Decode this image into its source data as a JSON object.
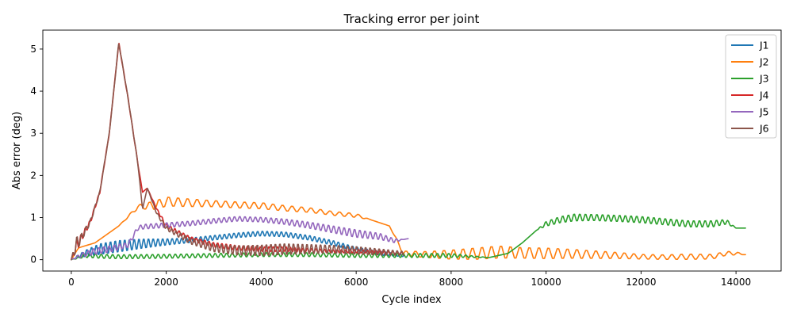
{
  "chart_data": {
    "type": "line",
    "title": "Tracking error per joint",
    "xlabel": "Cycle index",
    "ylabel": "Abs error (deg)",
    "xlim": [
      -600,
      14950
    ],
    "ylim": [
      -0.27,
      5.45
    ],
    "xticks": [
      0,
      2000,
      4000,
      6000,
      8000,
      10000,
      12000,
      14000
    ],
    "yticks": [
      0,
      1,
      2,
      3,
      4,
      5
    ],
    "xtick_labels": [
      "0",
      "2000",
      "4000",
      "6000",
      "8000",
      "10000",
      "12000",
      "14000"
    ],
    "ytick_labels": [
      "0",
      "1",
      "2",
      "3",
      "4",
      "5"
    ],
    "grid": false,
    "legend_position": "top-right",
    "series": [
      {
        "name": "J1",
        "color": "#1f77b4",
        "x": [
          0,
          100,
          300,
          600,
          1000,
          1500,
          2000,
          2500,
          3000,
          3500,
          4000,
          4500,
          5000,
          5500,
          6000,
          6500,
          7000
        ],
        "y": [
          0.0,
          0.05,
          0.15,
          0.25,
          0.32,
          0.38,
          0.42,
          0.46,
          0.52,
          0.58,
          0.62,
          0.6,
          0.52,
          0.4,
          0.25,
          0.15,
          0.1
        ],
        "osc_amp": [
          0.0,
          0.03,
          0.08,
          0.14,
          0.15,
          0.12,
          0.08,
          0.06,
          0.06,
          0.06,
          0.06,
          0.06,
          0.06,
          0.06,
          0.05,
          0.05,
          0.03
        ],
        "osc_period": 100
      },
      {
        "name": "J2",
        "color": "#ff7f0e",
        "x": [
          0,
          150,
          500,
          1000,
          1400,
          1800,
          2000,
          2500,
          3000,
          3500,
          4000,
          4500,
          5000,
          5500,
          6000,
          6300,
          6700,
          7000,
          7500,
          8000,
          8500,
          9000,
          9500,
          10000,
          10500,
          11000,
          11500,
          12000,
          12500,
          13000,
          13500,
          13800,
          14000,
          14200
        ],
        "y": [
          0.0,
          0.28,
          0.4,
          0.8,
          1.25,
          1.3,
          1.38,
          1.35,
          1.33,
          1.3,
          1.28,
          1.22,
          1.18,
          1.1,
          1.05,
          0.95,
          0.8,
          0.15,
          0.12,
          0.12,
          0.14,
          0.18,
          0.16,
          0.15,
          0.14,
          0.12,
          0.1,
          0.07,
          0.06,
          0.07,
          0.07,
          0.15,
          0.15,
          0.12
        ],
        "osc_amp": [
          0.0,
          0.0,
          0.0,
          0.0,
          0.05,
          0.12,
          0.12,
          0.1,
          0.08,
          0.08,
          0.08,
          0.07,
          0.06,
          0.05,
          0.05,
          0.0,
          0.0,
          0.06,
          0.08,
          0.12,
          0.15,
          0.16,
          0.14,
          0.14,
          0.12,
          0.1,
          0.08,
          0.06,
          0.06,
          0.07,
          0.06,
          0.05,
          0.04,
          0.0
        ],
        "osc_period": 200
      },
      {
        "name": "J3",
        "color": "#2ca02c",
        "x": [
          0,
          300,
          600,
          1000,
          2000,
          3000,
          4000,
          5000,
          6000,
          7000,
          8000,
          8800,
          9200,
          9500,
          9800,
          10000,
          10300,
          10600,
          11000,
          11500,
          12000,
          12500,
          13000,
          13500,
          13800,
          14000,
          14200
        ],
        "y": [
          0.0,
          0.1,
          0.08,
          0.07,
          0.08,
          0.1,
          0.12,
          0.12,
          0.1,
          0.1,
          0.1,
          0.05,
          0.15,
          0.4,
          0.7,
          0.85,
          0.95,
          1.0,
          1.0,
          0.98,
          0.95,
          0.9,
          0.85,
          0.85,
          0.9,
          0.75,
          0.75
        ],
        "osc_amp": [
          0.0,
          0.05,
          0.05,
          0.05,
          0.05,
          0.05,
          0.05,
          0.05,
          0.05,
          0.05,
          0.05,
          0.0,
          0.0,
          0.0,
          0.0,
          0.06,
          0.08,
          0.09,
          0.08,
          0.08,
          0.08,
          0.08,
          0.08,
          0.08,
          0.06,
          0.0,
          0.0
        ],
        "osc_period": 120
      },
      {
        "name": "J4",
        "color": "#d62728",
        "x": [
          0,
          100,
          200,
          400,
          600,
          800,
          1000,
          1200,
          1400,
          1500,
          1600,
          1800,
          2000,
          2500,
          3000,
          3500,
          4000,
          4500,
          5000,
          5500,
          6000,
          6500,
          7000
        ],
        "y": [
          0.0,
          0.3,
          0.5,
          0.9,
          1.6,
          3.0,
          5.15,
          3.8,
          2.3,
          1.6,
          1.7,
          1.2,
          0.8,
          0.5,
          0.35,
          0.28,
          0.25,
          0.25,
          0.22,
          0.2,
          0.2,
          0.18,
          0.15
        ],
        "osc_amp": [
          0.0,
          0.15,
          0.1,
          0.05,
          0.03,
          0.02,
          0.02,
          0.02,
          0.02,
          0.0,
          0.0,
          0.02,
          0.05,
          0.05,
          0.06,
          0.06,
          0.06,
          0.06,
          0.05,
          0.04,
          0.04,
          0.04,
          0.03
        ],
        "osc_period": 90
      },
      {
        "name": "J5",
        "color": "#9467bd",
        "x": [
          0,
          200,
          500,
          800,
          1200,
          1400,
          1500,
          2000,
          2500,
          3000,
          3500,
          4000,
          4500,
          5000,
          5500,
          6000,
          6500,
          6800,
          7000,
          7100
        ],
        "y": [
          0.0,
          0.1,
          0.2,
          0.25,
          0.35,
          0.75,
          0.78,
          0.82,
          0.86,
          0.92,
          0.97,
          0.95,
          0.9,
          0.82,
          0.72,
          0.62,
          0.55,
          0.45,
          0.48,
          0.5
        ],
        "osc_amp": [
          0.0,
          0.05,
          0.08,
          0.08,
          0.06,
          0.05,
          0.06,
          0.06,
          0.06,
          0.06,
          0.06,
          0.06,
          0.07,
          0.08,
          0.09,
          0.1,
          0.08,
          0.05,
          0.0,
          0.0
        ],
        "osc_period": 110
      },
      {
        "name": "J6",
        "color": "#8c564b",
        "x": [
          0,
          100,
          200,
          400,
          600,
          800,
          1000,
          1200,
          1400,
          1500,
          1600,
          1800,
          2000,
          2500,
          3000,
          3500,
          4000,
          4500,
          5000,
          5500,
          6000,
          6500,
          7000
        ],
        "y": [
          0.0,
          0.35,
          0.5,
          0.9,
          1.6,
          3.0,
          5.15,
          3.8,
          2.3,
          1.2,
          1.7,
          1.1,
          0.75,
          0.45,
          0.28,
          0.22,
          0.22,
          0.25,
          0.25,
          0.25,
          0.22,
          0.18,
          0.15
        ],
        "osc_amp": [
          0.0,
          0.2,
          0.1,
          0.05,
          0.03,
          0.02,
          0.03,
          0.02,
          0.02,
          0.0,
          0.0,
          0.03,
          0.05,
          0.08,
          0.1,
          0.12,
          0.14,
          0.14,
          0.12,
          0.1,
          0.1,
          0.08,
          0.05
        ],
        "osc_period": 95
      }
    ]
  }
}
